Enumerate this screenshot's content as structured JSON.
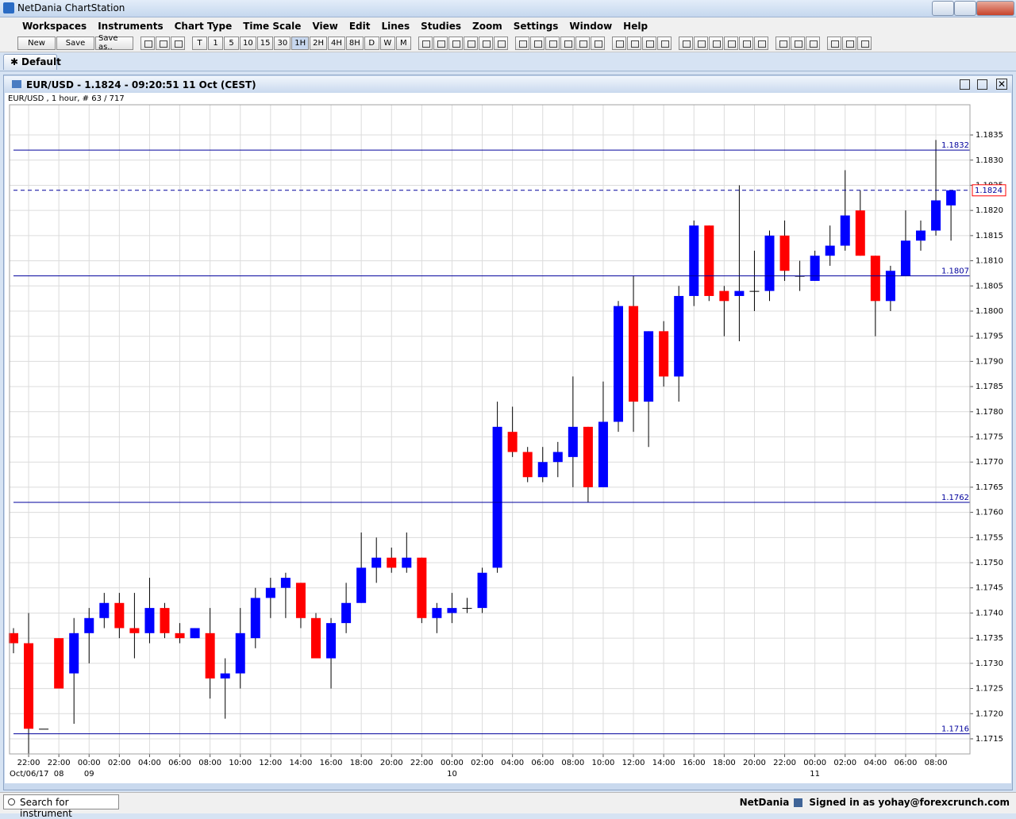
{
  "window": {
    "title": "NetDania ChartStation"
  },
  "menu": [
    "Workspaces",
    "Instruments",
    "Chart Type",
    "Time Scale",
    "View",
    "Edit",
    "Lines",
    "Studies",
    "Zoom",
    "Settings",
    "Window",
    "Help"
  ],
  "toolbar": {
    "file_buttons": [
      "New",
      "Save",
      "Save as.."
    ],
    "timescales": [
      "T",
      "1",
      "5",
      "10",
      "15",
      "30",
      "1H",
      "2H",
      "4H",
      "8H",
      "D",
      "W",
      "M"
    ],
    "active_timescale": "1H"
  },
  "tab": {
    "label": "Default"
  },
  "chart_window": {
    "title": "EUR/USD - 1.1824 - 09:20:51  11 Oct (CEST)",
    "info": "EUR/USD , 1 hour, # 63 / 717"
  },
  "chart_data": {
    "type": "candlestick",
    "up_color": "#0000ff",
    "down_color": "#ff0000",
    "grid": true,
    "ylim": [
      1.1712,
      1.1841
    ],
    "yticks": [
      {
        "value": 1.1715,
        "label": "1.1715"
      },
      {
        "value": 1.172,
        "label": "1.1720"
      },
      {
        "value": 1.1725,
        "label": "1.1725"
      },
      {
        "value": 1.173,
        "label": "1.1730"
      },
      {
        "value": 1.1735,
        "label": "1.1735"
      },
      {
        "value": 1.174,
        "label": "1.1740"
      },
      {
        "value": 1.1745,
        "label": "1.1745"
      },
      {
        "value": 1.175,
        "label": "1.1750"
      },
      {
        "value": 1.1755,
        "label": "1.1755"
      },
      {
        "value": 1.176,
        "label": "1.1760"
      },
      {
        "value": 1.1765,
        "label": "1.1765"
      },
      {
        "value": 1.177,
        "label": "1.1770"
      },
      {
        "value": 1.1775,
        "label": "1.1775"
      },
      {
        "value": 1.178,
        "label": "1.1780"
      },
      {
        "value": 1.1785,
        "label": "1.1785"
      },
      {
        "value": 1.179,
        "label": "1.1790"
      },
      {
        "value": 1.1795,
        "label": "1.1795"
      },
      {
        "value": 1.18,
        "label": "1.1800"
      },
      {
        "value": 1.1805,
        "label": "1.1805"
      },
      {
        "value": 1.181,
        "label": "1.1810"
      },
      {
        "value": 1.1815,
        "label": "1.1815"
      },
      {
        "value": 1.182,
        "label": "1.1820"
      },
      {
        "value": 1.1825,
        "label": "1.1825"
      },
      {
        "value": 1.183,
        "label": "1.1830"
      },
      {
        "value": 1.1835,
        "label": "1.1835"
      }
    ],
    "categories": [
      null,
      "22:00",
      null,
      "22:00",
      null,
      "00:00",
      null,
      "02:00",
      null,
      "04:00",
      null,
      "06:00",
      null,
      "08:00",
      null,
      "10:00",
      null,
      "12:00",
      null,
      "14:00",
      null,
      "16:00",
      null,
      "18:00",
      null,
      "20:00",
      null,
      "22:00",
      null,
      "00:00",
      null,
      "02:00",
      null,
      "04:00",
      null,
      "06:00",
      null,
      "08:00",
      null,
      "10:00",
      null,
      "12:00",
      null,
      "14:00",
      null,
      "16:00",
      null,
      "18:00",
      null,
      "20:00",
      null,
      "22:00",
      null,
      "00:00",
      null,
      "02:00",
      null,
      "04:00",
      null,
      "06:00",
      null,
      "08:00",
      null
    ],
    "date_labels": [
      null,
      "Oct/06/17",
      null,
      "08",
      null,
      "09",
      null,
      null,
      null,
      null,
      null,
      null,
      null,
      null,
      null,
      null,
      null,
      null,
      null,
      null,
      null,
      null,
      null,
      null,
      null,
      null,
      null,
      null,
      null,
      "10",
      null,
      null,
      null,
      null,
      null,
      null,
      null,
      null,
      null,
      null,
      null,
      null,
      null,
      null,
      null,
      null,
      null,
      null,
      null,
      null,
      null,
      null,
      null,
      "11",
      null,
      null,
      null,
      null,
      null,
      null,
      null,
      null,
      null
    ],
    "open": [
      1.1736,
      1.1734,
      1.1717,
      1.1735,
      1.1728,
      1.1736,
      1.1739,
      1.1742,
      1.1737,
      1.1736,
      1.1741,
      1.1736,
      1.1735,
      1.1736,
      1.1727,
      1.1728,
      1.1735,
      1.1743,
      1.1745,
      1.1746,
      1.1739,
      1.1731,
      1.1738,
      1.1742,
      1.1749,
      1.1751,
      1.1749,
      1.1751,
      1.1739,
      1.174,
      1.1741,
      1.1741,
      1.1749,
      1.1776,
      1.1772,
      1.1767,
      1.177,
      1.1771,
      1.1777,
      1.1765,
      1.1778,
      1.1801,
      1.1782,
      1.1796,
      1.1787,
      1.1803,
      1.1817,
      1.1804,
      1.1803,
      1.1804,
      1.1804,
      1.1815,
      1.1807,
      1.1806,
      1.1811,
      1.1813,
      1.182,
      1.1811,
      1.1802,
      1.1807,
      1.1814,
      1.1816,
      1.1821
    ],
    "high": [
      1.1737,
      1.174,
      1.1717,
      1.1735,
      1.1739,
      1.1741,
      1.1744,
      1.1744,
      1.1744,
      1.1747,
      1.1742,
      1.1738,
      1.1737,
      1.1741,
      1.1731,
      1.1741,
      1.1745,
      1.1747,
      1.1748,
      1.1746,
      1.174,
      1.1739,
      1.1746,
      1.1756,
      1.1755,
      1.1753,
      1.1756,
      1.1751,
      1.1742,
      1.1744,
      1.1743,
      1.1749,
      1.1782,
      1.1781,
      1.1773,
      1.1773,
      1.1774,
      1.1787,
      1.1777,
      1.1786,
      1.1802,
      1.1807,
      1.1796,
      1.1798,
      1.1805,
      1.1818,
      1.1817,
      1.1805,
      1.1825,
      1.1812,
      1.1816,
      1.1818,
      1.181,
      1.1812,
      1.1817,
      1.1828,
      1.1824,
      1.1811,
      1.1809,
      1.182,
      1.1818,
      1.1834,
      1.1824
    ],
    "low": [
      1.1732,
      1.1712,
      1.1717,
      1.1725,
      1.1718,
      1.173,
      1.1737,
      1.1735,
      1.1731,
      1.1734,
      1.1735,
      1.1734,
      1.1735,
      1.1723,
      1.1719,
      1.1725,
      1.1733,
      1.1739,
      1.1739,
      1.1737,
      1.1731,
      1.1725,
      1.1736,
      1.1742,
      1.1746,
      1.1748,
      1.1748,
      1.1738,
      1.1736,
      1.1738,
      1.174,
      1.174,
      1.1748,
      1.1771,
      1.1766,
      1.1766,
      1.1767,
      1.1765,
      1.1762,
      1.1765,
      1.1776,
      1.1776,
      1.1773,
      1.1785,
      1.1782,
      1.1801,
      1.1802,
      1.1795,
      1.1794,
      1.18,
      1.1802,
      1.1806,
      1.1804,
      1.1806,
      1.1809,
      1.1812,
      1.1811,
      1.1795,
      1.18,
      1.1807,
      1.1812,
      1.1815,
      1.1814
    ],
    "close": [
      1.1734,
      1.1717,
      1.1717,
      1.1725,
      1.1736,
      1.1739,
      1.1742,
      1.1737,
      1.1736,
      1.1741,
      1.1736,
      1.1735,
      1.1737,
      1.1727,
      1.1728,
      1.1736,
      1.1743,
      1.1745,
      1.1747,
      1.1739,
      1.1731,
      1.1738,
      1.1742,
      1.1749,
      1.1751,
      1.1749,
      1.1751,
      1.1739,
      1.1741,
      1.1741,
      1.1741,
      1.1748,
      1.1777,
      1.1772,
      1.1767,
      1.177,
      1.1772,
      1.1777,
      1.1765,
      1.1778,
      1.1801,
      1.1782,
      1.1796,
      1.1787,
      1.1803,
      1.1817,
      1.1803,
      1.1802,
      1.1804,
      1.1804,
      1.1815,
      1.1808,
      1.1807,
      1.1811,
      1.1813,
      1.1819,
      1.1811,
      1.1802,
      1.1808,
      1.1814,
      1.1816,
      1.1822,
      1.1824
    ],
    "price_lines": [
      {
        "value": 1.1832,
        "style": "solid"
      },
      {
        "value": 1.1824,
        "style": "dashed",
        "current": true
      },
      {
        "value": 1.1807,
        "style": "solid"
      },
      {
        "value": 1.1762,
        "style": "solid"
      },
      {
        "value": 1.1716,
        "style": "solid"
      }
    ],
    "line_color": "#00009c"
  },
  "status_bar": {
    "search": "Search for instrument",
    "brand": "NetDania",
    "signed_in": "Signed in as yohay@forexcrunch.com"
  }
}
